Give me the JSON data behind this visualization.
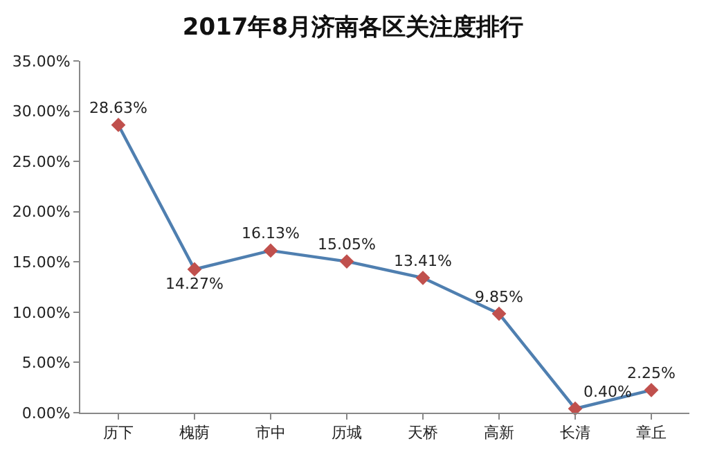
{
  "chart_data": {
    "type": "line",
    "title": "2017年8月济南各区关注度排行",
    "categories": [
      "历下",
      "槐荫",
      "市中",
      "历城",
      "天桥",
      "高新",
      "长清",
      "章丘"
    ],
    "series": [
      {
        "color": "#4f7fb0",
        "colors": [
          "#c0504d",
          "#c0504d",
          "#c0504d",
          "#c0504d",
          "#c0504d",
          "#c0504d",
          "#c0504d",
          "#c0504d"
        ],
        "values": [
          28.63,
          14.27,
          16.13,
          15.05,
          13.41,
          9.85,
          0.4,
          2.25
        ],
        "value_labels": [
          "28.63%",
          "14.27%",
          "16.13%",
          "15.05%",
          "13.41%",
          "9.85%",
          "0.40%",
          "2.25%"
        ]
      }
    ],
    "ylim": [
      0,
      35
    ],
    "yticks": [
      {
        "value": 0,
        "label": "0.00%"
      },
      {
        "value": 5,
        "label": "5.00%"
      },
      {
        "value": 10,
        "label": "10.00%"
      },
      {
        "value": 15,
        "label": "15.00%"
      },
      {
        "value": 20,
        "label": "20.00%"
      },
      {
        "value": 25,
        "label": "25.00%"
      },
      {
        "value": 30,
        "label": "30.00%"
      },
      {
        "value": 35,
        "label": "35.00%"
      }
    ],
    "grid": false,
    "marker": "diamond",
    "line_style": "solid"
  }
}
